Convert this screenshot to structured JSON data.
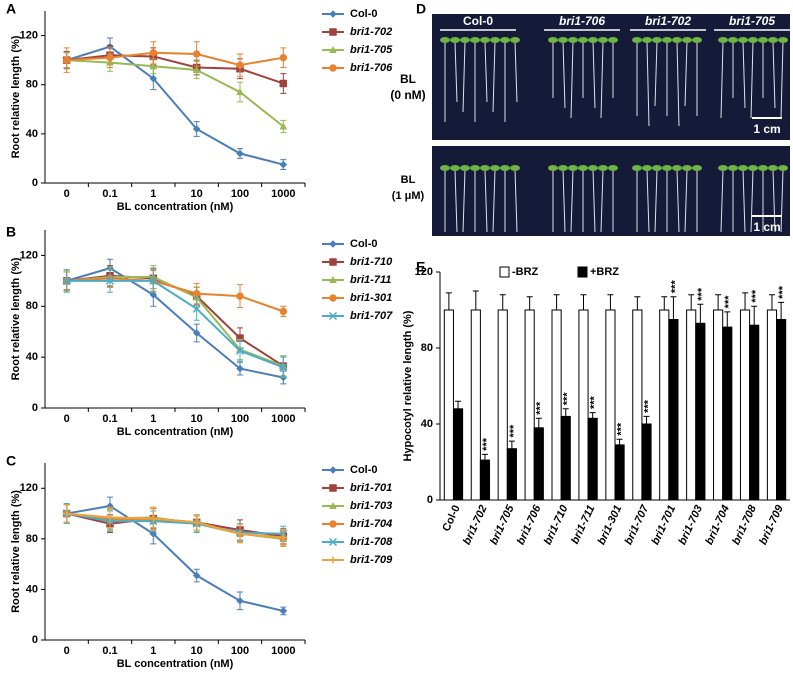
{
  "chart_data": [
    {
      "type": "line",
      "panel_label": "A",
      "x_label": "BL concentration (nM)",
      "y_label": "Root relative length (%)",
      "categories": [
        "0",
        "0.1",
        "1",
        "10",
        "100",
        "1000"
      ],
      "ylim": [
        0,
        140
      ],
      "yticks": [
        0,
        40,
        80,
        120
      ],
      "legend": "upper right",
      "series": [
        {
          "name": "Col-0",
          "color": "#4a7ebb",
          "marker": "diamond",
          "values": [
            100,
            111,
            85,
            44,
            24,
            15
          ],
          "errors": [
            6,
            7,
            9,
            6,
            4,
            4
          ]
        },
        {
          "name": "bri1-702",
          "color": "#a0413c",
          "marker": "square",
          "values": [
            100,
            104,
            103,
            94,
            93,
            81
          ],
          "errors": [
            7,
            8,
            7,
            6,
            8,
            8
          ]
        },
        {
          "name": "bri1-705",
          "color": "#98b954",
          "marker": "triangle",
          "values": [
            100,
            98,
            95,
            92,
            74,
            46
          ],
          "errors": [
            6,
            7,
            6,
            7,
            8,
            5
          ]
        },
        {
          "name": "bri1-706",
          "color": "#e8822e",
          "marker": "circle",
          "values": [
            100,
            102,
            106,
            105,
            96,
            102
          ],
          "errors": [
            10,
            8,
            9,
            10,
            9,
            8
          ]
        }
      ]
    },
    {
      "type": "line",
      "panel_label": "B",
      "x_label": "BL concentration (nM)",
      "y_label": "Root  relative length (%)",
      "categories": [
        "0",
        "0.1",
        "1",
        "10",
        "100",
        "1000"
      ],
      "ylim": [
        0,
        140
      ],
      "yticks": [
        0,
        40,
        80,
        120
      ],
      "legend": "upper right",
      "series": [
        {
          "name": "Col-0",
          "color": "#4a7ebb",
          "marker": "diamond",
          "values": [
            100,
            110,
            89,
            59,
            31,
            24
          ],
          "errors": [
            7,
            7,
            9,
            7,
            5,
            5
          ]
        },
        {
          "name": "bri1-710",
          "color": "#a0413c",
          "marker": "square",
          "values": [
            100,
            104,
            102,
            88,
            55,
            33
          ],
          "errors": [
            7,
            8,
            8,
            7,
            8,
            8
          ]
        },
        {
          "name": "bri1-711",
          "color": "#98b954",
          "marker": "triangle",
          "values": [
            100,
            103,
            103,
            87,
            46,
            33
          ],
          "errors": [
            8,
            8,
            9,
            8,
            8,
            8
          ]
        },
        {
          "name": "bri1-301",
          "color": "#e8822e",
          "marker": "circle",
          "values": [
            100,
            102,
            100,
            90,
            88,
            76
          ],
          "errors": [
            7,
            7,
            8,
            8,
            9,
            4
          ]
        },
        {
          "name": "bri1-707",
          "color": "#4bacc6",
          "marker": "x",
          "values": [
            100,
            100,
            100,
            78,
            45,
            32
          ],
          "errors": [
            9,
            9,
            9,
            9,
            8,
            8
          ]
        }
      ]
    },
    {
      "type": "line",
      "panel_label": "C",
      "x_label": "BL concentration (nM)",
      "y_label": "Root relative length (%)",
      "categories": [
        "0",
        "0.1",
        "1",
        "10",
        "100",
        "1000"
      ],
      "ylim": [
        0,
        140
      ],
      "yticks": [
        0,
        40,
        80,
        120
      ],
      "legend": "upper right",
      "series": [
        {
          "name": "Col-0",
          "color": "#4a7ebb",
          "marker": "diamond",
          "values": [
            100,
            106,
            84,
            51,
            31,
            23
          ],
          "errors": [
            7,
            7,
            8,
            5,
            7,
            3
          ]
        },
        {
          "name": "bri1-701",
          "color": "#a0413c",
          "marker": "square",
          "values": [
            100,
            92,
            96,
            93,
            87,
            82
          ],
          "errors": [
            7,
            7,
            8,
            6,
            8,
            6
          ]
        },
        {
          "name": "bri1-703",
          "color": "#98b954",
          "marker": "triangle",
          "values": [
            100,
            96,
            97,
            92,
            84,
            80
          ],
          "errors": [
            7,
            8,
            8,
            6,
            7,
            6
          ]
        },
        {
          "name": "bri1-704",
          "color": "#e8822e",
          "marker": "circle",
          "values": [
            100,
            95,
            95,
            93,
            84,
            81
          ],
          "errors": [
            7,
            8,
            9,
            6,
            7,
            6
          ]
        },
        {
          "name": "bri1-708",
          "color": "#4bacc6",
          "marker": "x",
          "values": [
            100,
            94,
            94,
            92,
            85,
            84
          ],
          "errors": [
            8,
            8,
            8,
            7,
            7,
            6
          ]
        },
        {
          "name": "bri1-709",
          "color": "#f2a13a",
          "marker": "plus",
          "values": [
            100,
            97,
            96,
            93,
            84,
            81
          ],
          "errors": [
            7,
            8,
            9,
            6,
            7,
            6
          ]
        }
      ]
    },
    {
      "type": "bar",
      "panel_label": "E",
      "y_label": "Hypocotyl relative length (%)",
      "categories": [
        "Col-0",
        "bri1-702",
        "bri1-705",
        "bri1-706",
        "bri1-710",
        "bri1-711",
        "bri1-301",
        "bri1-707",
        "bri1-701",
        "bri1-703",
        "bri1-704",
        "bri1-708",
        "bri1-709"
      ],
      "ylim": [
        0,
        120
      ],
      "yticks": [
        0,
        40,
        80,
        120
      ],
      "legend": "top",
      "series": [
        {
          "name": "-BRZ",
          "color": "#ffffff",
          "values": [
            100,
            100,
            100,
            100,
            100,
            100,
            100,
            100,
            100,
            100,
            100,
            100,
            100
          ],
          "errors": [
            9,
            10,
            8,
            7,
            8,
            8,
            8,
            7,
            7,
            8,
            8,
            9,
            8
          ]
        },
        {
          "name": "+BRZ",
          "color": "#000000",
          "values": [
            48,
            21,
            27,
            38,
            44,
            43,
            29,
            40,
            95,
            93,
            91,
            92,
            95
          ],
          "errors": [
            4,
            3,
            4,
            5,
            4,
            3,
            3,
            4,
            12,
            10,
            8,
            10,
            9
          ]
        }
      ],
      "significance": [
        null,
        "***",
        "***",
        "***",
        "***",
        "***",
        "***",
        "***",
        "***",
        "***",
        "***",
        "***",
        "***"
      ]
    }
  ],
  "photo": {
    "panel_label": "D",
    "genotypes": [
      "Col-0",
      "bri1-706",
      "bri1-702",
      "bri1-705"
    ],
    "rows": [
      {
        "line1": "BL",
        "line2": "(0 nM)"
      },
      {
        "line1": "BL",
        "line2": "(1 μM)"
      }
    ],
    "scale_bar": "1 cm"
  }
}
